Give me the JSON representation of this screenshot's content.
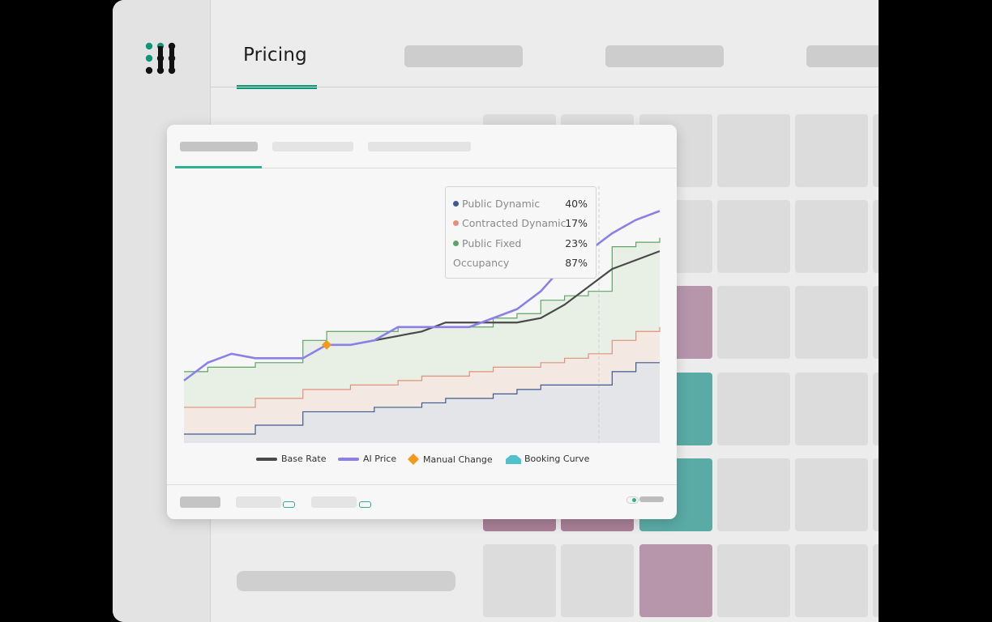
{
  "header": {
    "active_tab": "Pricing"
  },
  "colors": {
    "accent": "#0e9678",
    "base_rate": "#4a4a4a",
    "ai_price": "#8b80ea",
    "manual_change": "#f39a1c",
    "booking_curve": "#4fc1cc",
    "public_dynamic": "#3e5a8c",
    "contracted_dynamic": "#e2917a",
    "public_fixed": "#5ea465"
  },
  "tooltip": {
    "rows": [
      {
        "label": "Public Dynamic",
        "value": "40%",
        "color": "#3e5a8c"
      },
      {
        "label": "Contracted Dynamic",
        "value": "17%",
        "color": "#e2917a"
      },
      {
        "label": "Public Fixed",
        "value": "23%",
        "color": "#5ea465"
      },
      {
        "label": "Occupancy",
        "value": "87%"
      }
    ]
  },
  "legend": {
    "base_rate": "Base Rate",
    "ai_price": "AI Price",
    "manual_change": "Manual Change",
    "booking_curve": "Booking Curve"
  },
  "chart_data": {
    "type": "line",
    "x": [
      0,
      1,
      2,
      3,
      4,
      5,
      6,
      7,
      8,
      9,
      10,
      11,
      12,
      13,
      14,
      15,
      16,
      17,
      18,
      19,
      20
    ],
    "series": [
      {
        "name": "Base Rate",
        "values": [
          null,
          null,
          null,
          null,
          null,
          null,
          null,
          12,
          13,
          14,
          15,
          17,
          17,
          17,
          17,
          18,
          21,
          25,
          29,
          31,
          33
        ]
      },
      {
        "name": "AI Price",
        "values": [
          4,
          8,
          10,
          9,
          9,
          9,
          12,
          12,
          13,
          16,
          16,
          16,
          16,
          18,
          20,
          24,
          30,
          33,
          37,
          40,
          42
        ]
      },
      {
        "name": "Manual Change",
        "values": [
          null,
          null,
          null,
          null,
          null,
          null,
          12,
          null,
          null,
          null,
          null,
          null,
          null,
          null,
          null,
          null,
          null,
          null,
          null,
          null,
          null
        ]
      },
      {
        "name": "Public Dynamic",
        "values": [
          -8,
          -8,
          -8,
          -6,
          -6,
          -3,
          -3,
          -3,
          -2,
          -2,
          -1,
          0,
          0,
          1,
          2,
          3,
          3,
          3,
          6,
          8,
          8
        ]
      },
      {
        "name": "Contracted Dynamic",
        "values": [
          -2,
          -2,
          -2,
          0,
          0,
          2,
          2,
          3,
          3,
          4,
          5,
          5,
          6,
          7,
          7,
          8,
          9,
          10,
          13,
          15,
          16
        ]
      },
      {
        "name": "Public Fixed",
        "values": [
          6,
          7,
          7,
          8,
          8,
          13,
          15,
          15,
          15,
          16,
          16,
          16,
          16,
          18,
          19,
          22,
          23,
          24,
          34,
          35,
          36
        ]
      }
    ],
    "ylim": [
      -10,
      45
    ]
  }
}
